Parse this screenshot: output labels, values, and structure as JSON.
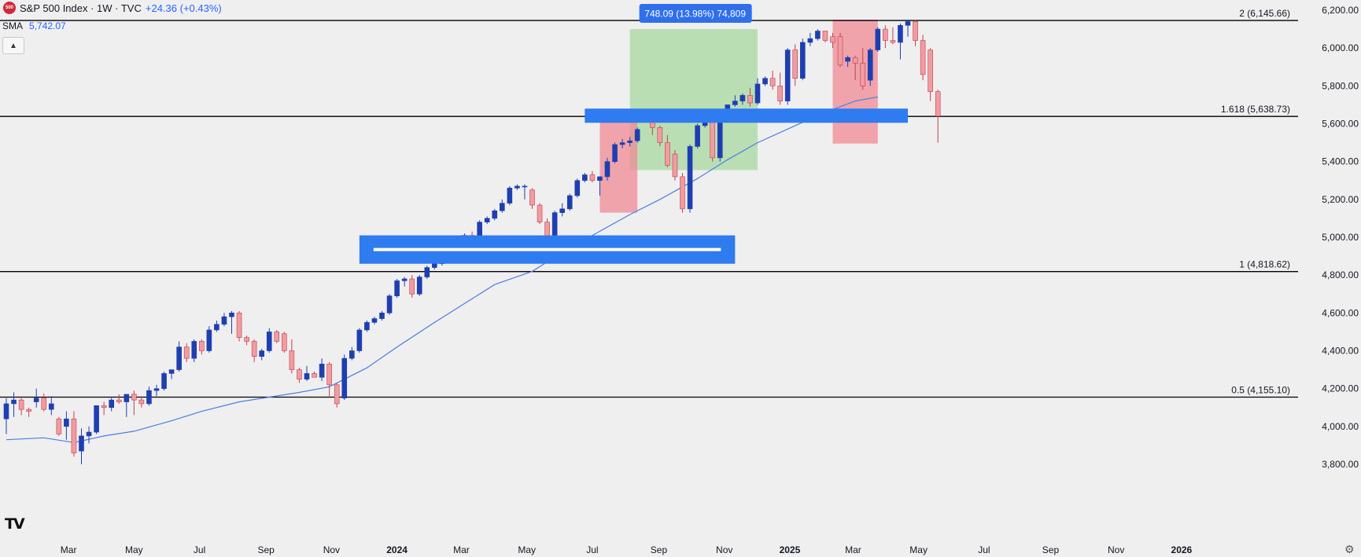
{
  "header": {
    "badge": "500",
    "title": "S&P 500 Index · 1W · TVC",
    "change": "+24.36 (+0.43%)",
    "sma_label": "SMA",
    "sma_value": "5,742.07",
    "collapse_icon": "chevron-up-icon"
  },
  "logo": "TV",
  "colors": {
    "bull": "#1e3fb0",
    "bear": "#f09ca0",
    "sma": "#4a7fe0",
    "zone": "#2f7bf0",
    "drawdown": "#f08a94",
    "rally": "#a8d8a0",
    "fib": "#000000"
  },
  "chart_data": {
    "type": "candlestick",
    "title": "S&P 500 Index · 1W · TVC",
    "ylim": [
      3750,
      6250
    ],
    "y_ticks": [
      "6,200.00",
      "6,000.00",
      "5,800.00",
      "5,600.00",
      "5,400.00",
      "5,200.00",
      "5,000.00",
      "4,800.00",
      "4,600.00",
      "4,400.00",
      "4,200.00",
      "4,000.00",
      "3,800.00"
    ],
    "x_ticks": [
      "Mar",
      "May",
      "Jul",
      "Sep",
      "Nov",
      "2024",
      "Mar",
      "May",
      "Jul",
      "Sep",
      "Nov",
      "2025",
      "Mar",
      "May",
      "Jul",
      "Sep",
      "Nov",
      "2026"
    ],
    "fib_levels": [
      {
        "label": "2 (6,145.66)",
        "value": 6145.66
      },
      {
        "label": "1.618 (5,638.73)",
        "value": 5638.73
      },
      {
        "label": "1 (4,818.62)",
        "value": 4818.62
      },
      {
        "label": "0.5 (4,155.10)",
        "value": 4155.1
      }
    ],
    "measure_label": "748.09 (13.98%) 74,809",
    "rally_zone": {
      "start": "2024-08-05",
      "end": "2024-12-02",
      "low": 5355,
      "high": 6100
    },
    "drawdowns": [
      {
        "start": "2024-07-08",
        "end": "2024-08-12",
        "low": 5130,
        "high": 5670
      },
      {
        "start": "2025-02-10",
        "end": "2025-03-24",
        "low": 5495,
        "high": 6150
      }
    ],
    "zones": [
      {
        "start": "2024-06-24",
        "end": "2025-04-21",
        "low": 5605,
        "high": 5680
      },
      {
        "start": "2023-11-27",
        "end": "2024-11-11",
        "low": 4860,
        "high": 5010
      }
    ],
    "sma": {
      "name": "SMA",
      "dates": [
        "2023-01-02",
        "2023-02-06",
        "2023-03-06",
        "2023-04-03",
        "2023-05-01",
        "2023-06-05",
        "2023-07-03",
        "2023-08-07",
        "2023-09-04",
        "2023-10-02",
        "2023-10-30",
        "2023-12-04",
        "2024-01-01",
        "2024-02-05",
        "2024-03-04",
        "2024-04-01",
        "2024-05-06",
        "2024-06-03",
        "2024-07-01",
        "2024-08-05",
        "2024-09-02",
        "2024-10-07",
        "2024-11-04",
        "2024-12-02",
        "2025-01-06",
        "2025-02-03",
        "2025-03-03",
        "2025-03-24"
      ],
      "values": [
        3930,
        3940,
        3915,
        3950,
        3975,
        4030,
        4080,
        4130,
        4155,
        4180,
        4210,
        4310,
        4420,
        4550,
        4650,
        4750,
        4820,
        4920,
        5010,
        5120,
        5200,
        5310,
        5410,
        5500,
        5590,
        5660,
        5720,
        5742
      ]
    },
    "candles": [
      {
        "date": "2023-01-02",
        "o": 4040,
        "h": 4150,
        "l": 3960,
        "c": 4120
      },
      {
        "date": "2023-01-09",
        "o": 4120,
        "h": 4180,
        "l": 4050,
        "c": 4140
      },
      {
        "date": "2023-01-16",
        "o": 4140,
        "h": 4160,
        "l": 4060,
        "c": 4090
      },
      {
        "date": "2023-01-23",
        "o": 4090,
        "h": 4100,
        "l": 4050,
        "c": 4080
      },
      {
        "date": "2023-01-30",
        "o": 4130,
        "h": 4200,
        "l": 4100,
        "c": 4150
      },
      {
        "date": "2023-02-06",
        "o": 4150,
        "h": 4175,
        "l": 4080,
        "c": 4090
      },
      {
        "date": "2023-02-13",
        "o": 4090,
        "h": 4160,
        "l": 4060,
        "c": 4120
      },
      {
        "date": "2023-02-20",
        "o": 4040,
        "h": 4050,
        "l": 3950,
        "c": 3960
      },
      {
        "date": "2023-02-27",
        "o": 4000,
        "h": 4080,
        "l": 3930,
        "c": 4040
      },
      {
        "date": "2023-03-06",
        "o": 4040,
        "h": 4080,
        "l": 3840,
        "c": 3860
      },
      {
        "date": "2023-03-13",
        "o": 3870,
        "h": 3990,
        "l": 3800,
        "c": 3950
      },
      {
        "date": "2023-03-20",
        "o": 3950,
        "h": 4000,
        "l": 3910,
        "c": 3970
      },
      {
        "date": "2023-03-27",
        "o": 3970,
        "h": 4110,
        "l": 3960,
        "c": 4110
      },
      {
        "date": "2023-04-03",
        "o": 4110,
        "h": 4130,
        "l": 4060,
        "c": 4100
      },
      {
        "date": "2023-04-10",
        "o": 4100,
        "h": 4150,
        "l": 4080,
        "c": 4140
      },
      {
        "date": "2023-04-17",
        "o": 4140,
        "h": 4170,
        "l": 4120,
        "c": 4130
      },
      {
        "date": "2023-04-24",
        "o": 4130,
        "h": 4170,
        "l": 4050,
        "c": 4170
      },
      {
        "date": "2023-05-01",
        "o": 4170,
        "h": 4190,
        "l": 4060,
        "c": 4140
      },
      {
        "date": "2023-05-08",
        "o": 4140,
        "h": 4160,
        "l": 4100,
        "c": 4120
      },
      {
        "date": "2023-05-15",
        "o": 4120,
        "h": 4210,
        "l": 4110,
        "c": 4190
      },
      {
        "date": "2023-05-22",
        "o": 4190,
        "h": 4220,
        "l": 4160,
        "c": 4200
      },
      {
        "date": "2023-05-29",
        "o": 4200,
        "h": 4290,
        "l": 4190,
        "c": 4280
      },
      {
        "date": "2023-06-05",
        "o": 4280,
        "h": 4300,
        "l": 4250,
        "c": 4300
      },
      {
        "date": "2023-06-12",
        "o": 4300,
        "h": 4450,
        "l": 4290,
        "c": 4420
      },
      {
        "date": "2023-06-19",
        "o": 4420,
        "h": 4440,
        "l": 4340,
        "c": 4360
      },
      {
        "date": "2023-06-26",
        "o": 4360,
        "h": 4460,
        "l": 4340,
        "c": 4450
      },
      {
        "date": "2023-07-03",
        "o": 4450,
        "h": 4460,
        "l": 4380,
        "c": 4400
      },
      {
        "date": "2023-07-10",
        "o": 4400,
        "h": 4530,
        "l": 4390,
        "c": 4510
      },
      {
        "date": "2023-07-17",
        "o": 4510,
        "h": 4560,
        "l": 4500,
        "c": 4540
      },
      {
        "date": "2023-07-24",
        "o": 4540,
        "h": 4600,
        "l": 4530,
        "c": 4580
      },
      {
        "date": "2023-07-31",
        "o": 4580,
        "h": 4610,
        "l": 4490,
        "c": 4600
      },
      {
        "date": "2023-08-07",
        "o": 4600,
        "h": 4610,
        "l": 4450,
        "c": 4470
      },
      {
        "date": "2023-08-14",
        "o": 4470,
        "h": 4480,
        "l": 4430,
        "c": 4450
      },
      {
        "date": "2023-08-21",
        "o": 4450,
        "h": 4460,
        "l": 4340,
        "c": 4370
      },
      {
        "date": "2023-08-28",
        "o": 4370,
        "h": 4410,
        "l": 4350,
        "c": 4400
      },
      {
        "date": "2023-09-04",
        "o": 4400,
        "h": 4520,
        "l": 4390,
        "c": 4500
      },
      {
        "date": "2023-09-11",
        "o": 4500,
        "h": 4510,
        "l": 4440,
        "c": 4450
      },
      {
        "date": "2023-09-18",
        "o": 4490,
        "h": 4500,
        "l": 4390,
        "c": 4400
      },
      {
        "date": "2023-09-25",
        "o": 4400,
        "h": 4460,
        "l": 4280,
        "c": 4300
      },
      {
        "date": "2023-10-02",
        "o": 4300,
        "h": 4310,
        "l": 4230,
        "c": 4250
      },
      {
        "date": "2023-10-09",
        "o": 4250,
        "h": 4320,
        "l": 4240,
        "c": 4280
      },
      {
        "date": "2023-10-16",
        "o": 4280,
        "h": 4290,
        "l": 4260,
        "c": 4260
      },
      {
        "date": "2023-10-23",
        "o": 4260,
        "h": 4360,
        "l": 4240,
        "c": 4330
      },
      {
        "date": "2023-10-30",
        "o": 4330,
        "h": 4340,
        "l": 4160,
        "c": 4220
      },
      {
        "date": "2023-11-06",
        "o": 4220,
        "h": 4230,
        "l": 4100,
        "c": 4120
      },
      {
        "date": "2023-11-13",
        "o": 4150,
        "h": 4380,
        "l": 4140,
        "c": 4360
      },
      {
        "date": "2023-11-20",
        "o": 4360,
        "h": 4420,
        "l": 4350,
        "c": 4400
      },
      {
        "date": "2023-11-27",
        "o": 4400,
        "h": 4520,
        "l": 4390,
        "c": 4510
      },
      {
        "date": "2023-12-04",
        "o": 4510,
        "h": 4560,
        "l": 4500,
        "c": 4550
      },
      {
        "date": "2023-12-11",
        "o": 4550,
        "h": 4580,
        "l": 4540,
        "c": 4570
      },
      {
        "date": "2023-12-18",
        "o": 4570,
        "h": 4610,
        "l": 4560,
        "c": 4600
      },
      {
        "date": "2023-12-25",
        "o": 4600,
        "h": 4700,
        "l": 4590,
        "c": 4690
      },
      {
        "date": "2024-01-01",
        "o": 4690,
        "h": 4780,
        "l": 4680,
        "c": 4770
      },
      {
        "date": "2024-01-08",
        "o": 4770,
        "h": 4790,
        "l": 4740,
        "c": 4780
      },
      {
        "date": "2024-01-15",
        "o": 4780,
        "h": 4800,
        "l": 4680,
        "c": 4700
      },
      {
        "date": "2024-01-22",
        "o": 4700,
        "h": 4800,
        "l": 4690,
        "c": 4790
      },
      {
        "date": "2024-01-29",
        "o": 4790,
        "h": 4850,
        "l": 4780,
        "c": 4840
      },
      {
        "date": "2024-02-05",
        "o": 4840,
        "h": 4870,
        "l": 4830,
        "c": 4860
      },
      {
        "date": "2024-02-12",
        "o": 4860,
        "h": 4890,
        "l": 4850,
        "c": 4880
      },
      {
        "date": "2024-02-19",
        "o": 4880,
        "h": 4970,
        "l": 4870,
        "c": 4960
      },
      {
        "date": "2024-02-26",
        "o": 4960,
        "h": 5000,
        "l": 4940,
        "c": 4990
      },
      {
        "date": "2024-03-04",
        "o": 4990,
        "h": 5020,
        "l": 4960,
        "c": 5010
      },
      {
        "date": "2024-03-11",
        "o": 5010,
        "h": 5030,
        "l": 4980,
        "c": 5000
      },
      {
        "date": "2024-03-18",
        "o": 5000,
        "h": 5090,
        "l": 4990,
        "c": 5080
      },
      {
        "date": "2024-03-25",
        "o": 5080,
        "h": 5110,
        "l": 5070,
        "c": 5100
      },
      {
        "date": "2024-04-01",
        "o": 5100,
        "h": 5150,
        "l": 5090,
        "c": 5140
      },
      {
        "date": "2024-04-08",
        "o": 5140,
        "h": 5200,
        "l": 5130,
        "c": 5180
      },
      {
        "date": "2024-04-15",
        "o": 5180,
        "h": 5270,
        "l": 5170,
        "c": 5260
      },
      {
        "date": "2024-04-22",
        "o": 5260,
        "h": 5280,
        "l": 5250,
        "c": 5270
      },
      {
        "date": "2024-04-29",
        "o": 5270,
        "h": 5280,
        "l": 5200,
        "c": 5270
      },
      {
        "date": "2024-05-06",
        "o": 5250,
        "h": 5260,
        "l": 5150,
        "c": 5170
      },
      {
        "date": "2024-05-13",
        "o": 5170,
        "h": 5180,
        "l": 5070,
        "c": 5080
      },
      {
        "date": "2024-05-20",
        "o": 5080,
        "h": 5100,
        "l": 4970,
        "c": 4980
      },
      {
        "date": "2024-05-27",
        "o": 5010,
        "h": 5140,
        "l": 5000,
        "c": 5130
      },
      {
        "date": "2024-06-03",
        "o": 5130,
        "h": 5180,
        "l": 5110,
        "c": 5150
      },
      {
        "date": "2024-06-10",
        "o": 5150,
        "h": 5230,
        "l": 5140,
        "c": 5220
      },
      {
        "date": "2024-06-17",
        "o": 5220,
        "h": 5310,
        "l": 5210,
        "c": 5300
      },
      {
        "date": "2024-06-24",
        "o": 5300,
        "h": 5340,
        "l": 5290,
        "c": 5330
      },
      {
        "date": "2024-07-01",
        "o": 5330,
        "h": 5350,
        "l": 5290,
        "c": 5300
      },
      {
        "date": "2024-07-08",
        "o": 5300,
        "h": 5320,
        "l": 5220,
        "c": 5320
      },
      {
        "date": "2024-07-15",
        "o": 5320,
        "h": 5420,
        "l": 5300,
        "c": 5400
      },
      {
        "date": "2024-07-22",
        "o": 5400,
        "h": 5500,
        "l": 5390,
        "c": 5490
      },
      {
        "date": "2024-07-29",
        "o": 5490,
        "h": 5520,
        "l": 5470,
        "c": 5500
      },
      {
        "date": "2024-08-05",
        "o": 5500,
        "h": 5530,
        "l": 5480,
        "c": 5510
      },
      {
        "date": "2024-08-12",
        "o": 5510,
        "h": 5580,
        "l": 5500,
        "c": 5570
      },
      {
        "date": "2024-08-19",
        "o": 5620,
        "h": 5670,
        "l": 5610,
        "c": 5660
      },
      {
        "date": "2024-08-26",
        "o": 5660,
        "h": 5670,
        "l": 5540,
        "c": 5580
      },
      {
        "date": "2024-09-02",
        "o": 5580,
        "h": 5590,
        "l": 5480,
        "c": 5500
      },
      {
        "date": "2024-09-09",
        "o": 5500,
        "h": 5540,
        "l": 5370,
        "c": 5380
      },
      {
        "date": "2024-09-16",
        "o": 5440,
        "h": 5460,
        "l": 5300,
        "c": 5320
      },
      {
        "date": "2024-09-23",
        "o": 5320,
        "h": 5340,
        "l": 5130,
        "c": 5150
      },
      {
        "date": "2024-09-30",
        "o": 5150,
        "h": 5490,
        "l": 5130,
        "c": 5480
      },
      {
        "date": "2024-10-07",
        "o": 5480,
        "h": 5600,
        "l": 5470,
        "c": 5590
      },
      {
        "date": "2024-10-14",
        "o": 5590,
        "h": 5660,
        "l": 5580,
        "c": 5650
      },
      {
        "date": "2024-10-21",
        "o": 5650,
        "h": 5670,
        "l": 5400,
        "c": 5420
      },
      {
        "date": "2024-10-28",
        "o": 5420,
        "h": 5670,
        "l": 5400,
        "c": 5660
      },
      {
        "date": "2024-11-04",
        "o": 5660,
        "h": 5700,
        "l": 5640,
        "c": 5700
      },
      {
        "date": "2024-11-11",
        "o": 5700,
        "h": 5750,
        "l": 5690,
        "c": 5720
      },
      {
        "date": "2024-11-18",
        "o": 5720,
        "h": 5760,
        "l": 5700,
        "c": 5750
      },
      {
        "date": "2024-11-25",
        "o": 5750,
        "h": 5790,
        "l": 5690,
        "c": 5710
      },
      {
        "date": "2024-12-02",
        "o": 5710,
        "h": 5840,
        "l": 5700,
        "c": 5810
      },
      {
        "date": "2024-12-09",
        "o": 5810,
        "h": 5850,
        "l": 5800,
        "c": 5840
      },
      {
        "date": "2024-12-16",
        "o": 5840,
        "h": 5880,
        "l": 5780,
        "c": 5800
      },
      {
        "date": "2024-12-23",
        "o": 5800,
        "h": 5870,
        "l": 5700,
        "c": 5720
      },
      {
        "date": "2024-12-30",
        "o": 5720,
        "h": 6000,
        "l": 5700,
        "c": 5990
      },
      {
        "date": "2025-01-06",
        "o": 5990,
        "h": 6020,
        "l": 5800,
        "c": 5840
      },
      {
        "date": "2025-01-13",
        "o": 5840,
        "h": 6050,
        "l": 5830,
        "c": 6030
      },
      {
        "date": "2025-01-20",
        "o": 6030,
        "h": 6080,
        "l": 6010,
        "c": 6050
      },
      {
        "date": "2025-01-27",
        "o": 6050,
        "h": 6100,
        "l": 6040,
        "c": 6090
      },
      {
        "date": "2025-02-03",
        "o": 6090,
        "h": 6090,
        "l": 6030,
        "c": 6040
      },
      {
        "date": "2025-02-10",
        "o": 6060,
        "h": 6080,
        "l": 6000,
        "c": 6030
      },
      {
        "date": "2025-02-17",
        "o": 6060,
        "h": 6080,
        "l": 5900,
        "c": 5910
      },
      {
        "date": "2025-02-24",
        "o": 5930,
        "h": 5960,
        "l": 5900,
        "c": 5950
      },
      {
        "date": "2025-03-03",
        "o": 5950,
        "h": 5960,
        "l": 5830,
        "c": 5920
      },
      {
        "date": "2025-03-10",
        "o": 5920,
        "h": 6000,
        "l": 5780,
        "c": 5800
      },
      {
        "date": "2025-03-17",
        "o": 5830,
        "h": 6000,
        "l": 5800,
        "c": 5990
      },
      {
        "date": "2025-03-24",
        "o": 5990,
        "h": 6110,
        "l": 5980,
        "c": 6100
      },
      {
        "date": "2025-03-31",
        "o": 6100,
        "h": 6120,
        "l": 6000,
        "c": 6040
      },
      {
        "date": "2025-04-07",
        "o": 6040,
        "h": 6110,
        "l": 6020,
        "c": 6030
      },
      {
        "date": "2025-04-14",
        "o": 6030,
        "h": 6130,
        "l": 5940,
        "c": 6120
      },
      {
        "date": "2025-04-21",
        "o": 6120,
        "h": 6150,
        "l": 6060,
        "c": 6140
      },
      {
        "date": "2025-04-28",
        "o": 6140,
        "h": 6147,
        "l": 6010,
        "c": 6040
      },
      {
        "date": "2025-05-05",
        "o": 6040,
        "h": 6070,
        "l": 5830,
        "c": 5860
      },
      {
        "date": "2025-05-12",
        "o": 5990,
        "h": 6000,
        "l": 5720,
        "c": 5770
      },
      {
        "date": "2025-05-19",
        "o": 5770,
        "h": 5780,
        "l": 5500,
        "c": 5640
      }
    ]
  }
}
